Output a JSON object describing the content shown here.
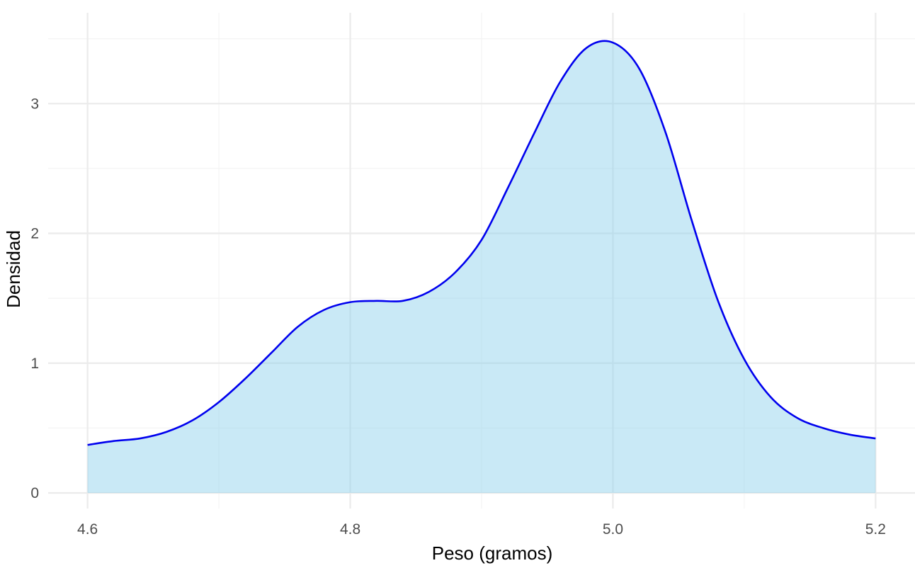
{
  "chart_data": {
    "type": "area",
    "title": "",
    "xlabel": "Peso (gramos)",
    "ylabel": "Densidad",
    "xlim": [
      4.57,
      5.23
    ],
    "ylim": [
      -0.12,
      3.7
    ],
    "x_ticks": [
      4.6,
      4.8,
      5.0,
      5.2
    ],
    "x_tick_labels": [
      "4.6",
      "4.8",
      "5.0",
      "5.2"
    ],
    "y_ticks": [
      0,
      1,
      2,
      3
    ],
    "y_tick_labels": [
      "0",
      "1",
      "2",
      "3"
    ],
    "grid": true,
    "legend": "none",
    "series": [
      {
        "x": [
          4.6,
          4.62,
          4.64,
          4.66,
          4.68,
          4.7,
          4.72,
          4.74,
          4.76,
          4.78,
          4.8,
          4.82,
          4.84,
          4.86,
          4.88,
          4.9,
          4.92,
          4.94,
          4.96,
          4.98,
          5.0,
          5.02,
          5.04,
          5.06,
          5.08,
          5.1,
          5.12,
          5.14,
          5.16,
          5.18,
          5.2
        ],
        "y": [
          0.37,
          0.4,
          0.42,
          0.47,
          0.56,
          0.7,
          0.88,
          1.08,
          1.28,
          1.41,
          1.47,
          1.48,
          1.48,
          1.55,
          1.7,
          1.95,
          2.35,
          2.77,
          3.17,
          3.43,
          3.47,
          3.27,
          2.78,
          2.1,
          1.48,
          1.03,
          0.74,
          0.58,
          0.5,
          0.45,
          0.42
        ]
      }
    ],
    "colors": {
      "line": "#0000ee",
      "fill": "#87ceeb",
      "grid_major": "#ebebeb",
      "grid_minor": "#f4f4f4"
    }
  }
}
